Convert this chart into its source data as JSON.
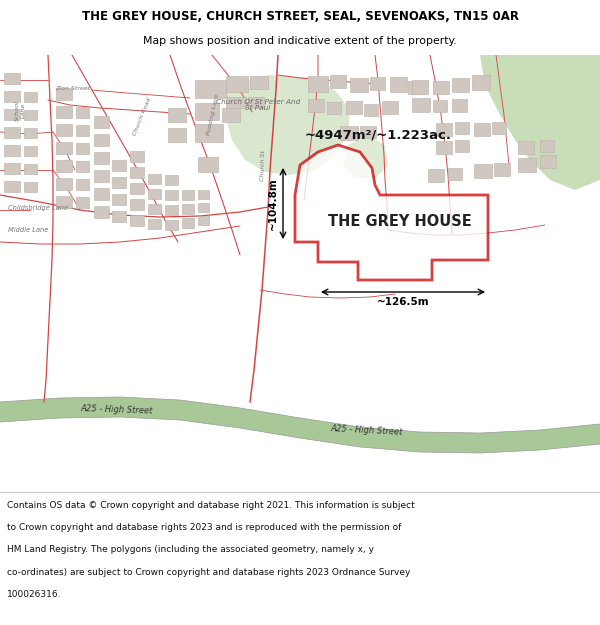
{
  "title_line1": "THE GREY HOUSE, CHURCH STREET, SEAL, SEVENOAKS, TN15 0AR",
  "title_line2": "Map shows position and indicative extent of the property.",
  "property_label": "THE GREY HOUSE",
  "area_label": "~4947m²/~1.223ac.",
  "dim_width": "~126.5m",
  "dim_height": "~104.8m",
  "footer_lines": [
    "Contains OS data © Crown copyright and database right 2021. This information is subject",
    "to Crown copyright and database rights 2023 and is reproduced with the permission of",
    "HM Land Registry. The polygons (including the associated geometry, namely x, y",
    "co-ordinates) are subject to Crown copyright and database rights 2023 Ordnance Survey",
    "100026316."
  ],
  "map_bg": "#f0ebe4",
  "road_red": "#d44444",
  "property_fill": "#ffffff",
  "property_edge": "#cc0000",
  "green_fill": "#c8ddb8",
  "green_road_fill": "#a8c898",
  "building_fill": "#d0c8c0",
  "building_edge": "#b8b0a8",
  "footer_bg": "#ffffff",
  "title_bg": "#ffffff",
  "road_label_color": "#777777",
  "title_fs": 8.5,
  "subtitle_fs": 7.8,
  "footer_fs": 6.5
}
